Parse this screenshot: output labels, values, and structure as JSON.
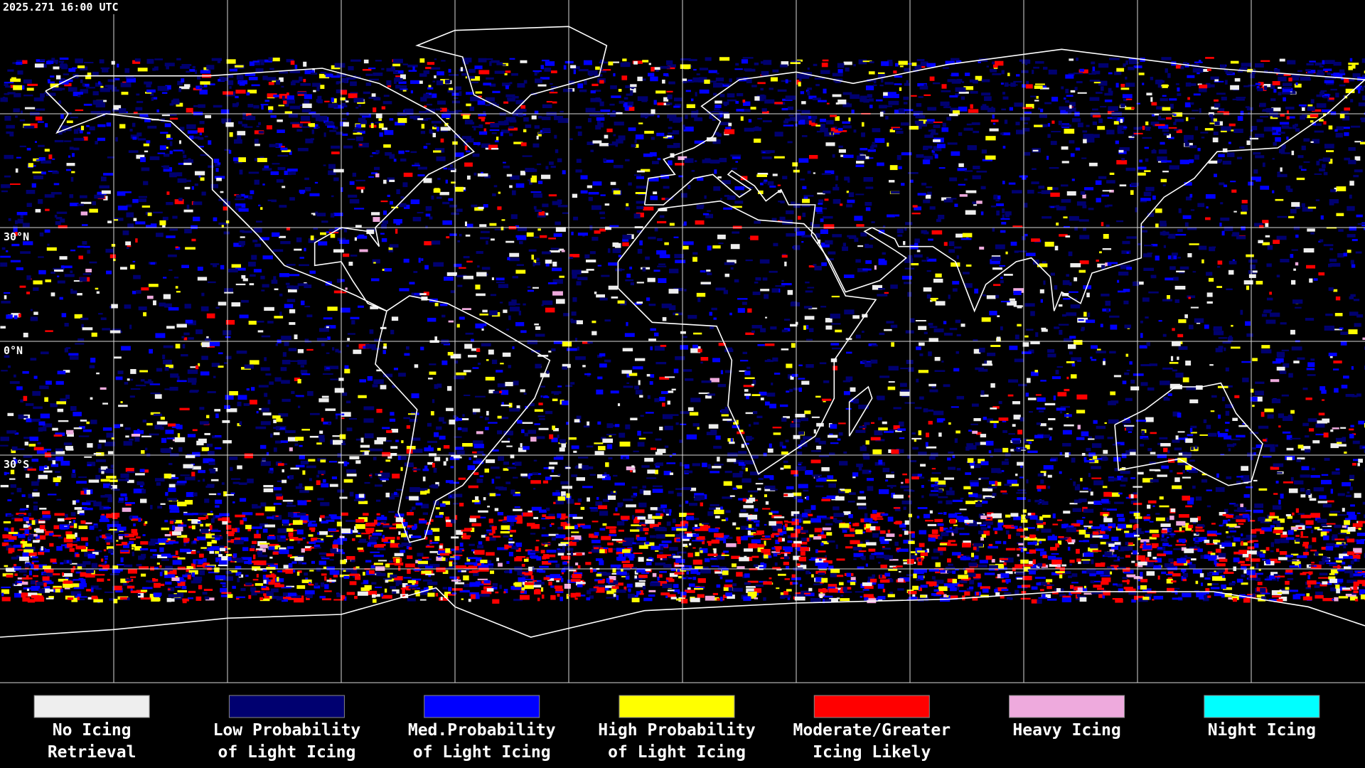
{
  "header": {
    "timestamp": "2025.271 16:00 UTC"
  },
  "map": {
    "latitude_labels": [
      "30°N",
      "0°N",
      "30°S"
    ]
  },
  "legend": [
    {
      "lines": [
        "No Icing",
        "Retrieval"
      ],
      "color": "#eeeeee"
    },
    {
      "lines": [
        "Low Probability",
        "of Light Icing"
      ],
      "color": "#000070"
    },
    {
      "lines": [
        "Med.Probability",
        "of Light Icing"
      ],
      "color": "#0000ff"
    },
    {
      "lines": [
        "High Probability",
        "of Light Icing"
      ],
      "color": "#ffff00"
    },
    {
      "lines": [
        "Moderate/Greater",
        "Icing Likely"
      ],
      "color": "#ff0000"
    },
    {
      "lines": [
        "Heavy Icing"
      ],
      "color": "#eeaadd"
    },
    {
      "lines": [
        "Night Icing"
      ],
      "color": "#00ffff"
    }
  ]
}
